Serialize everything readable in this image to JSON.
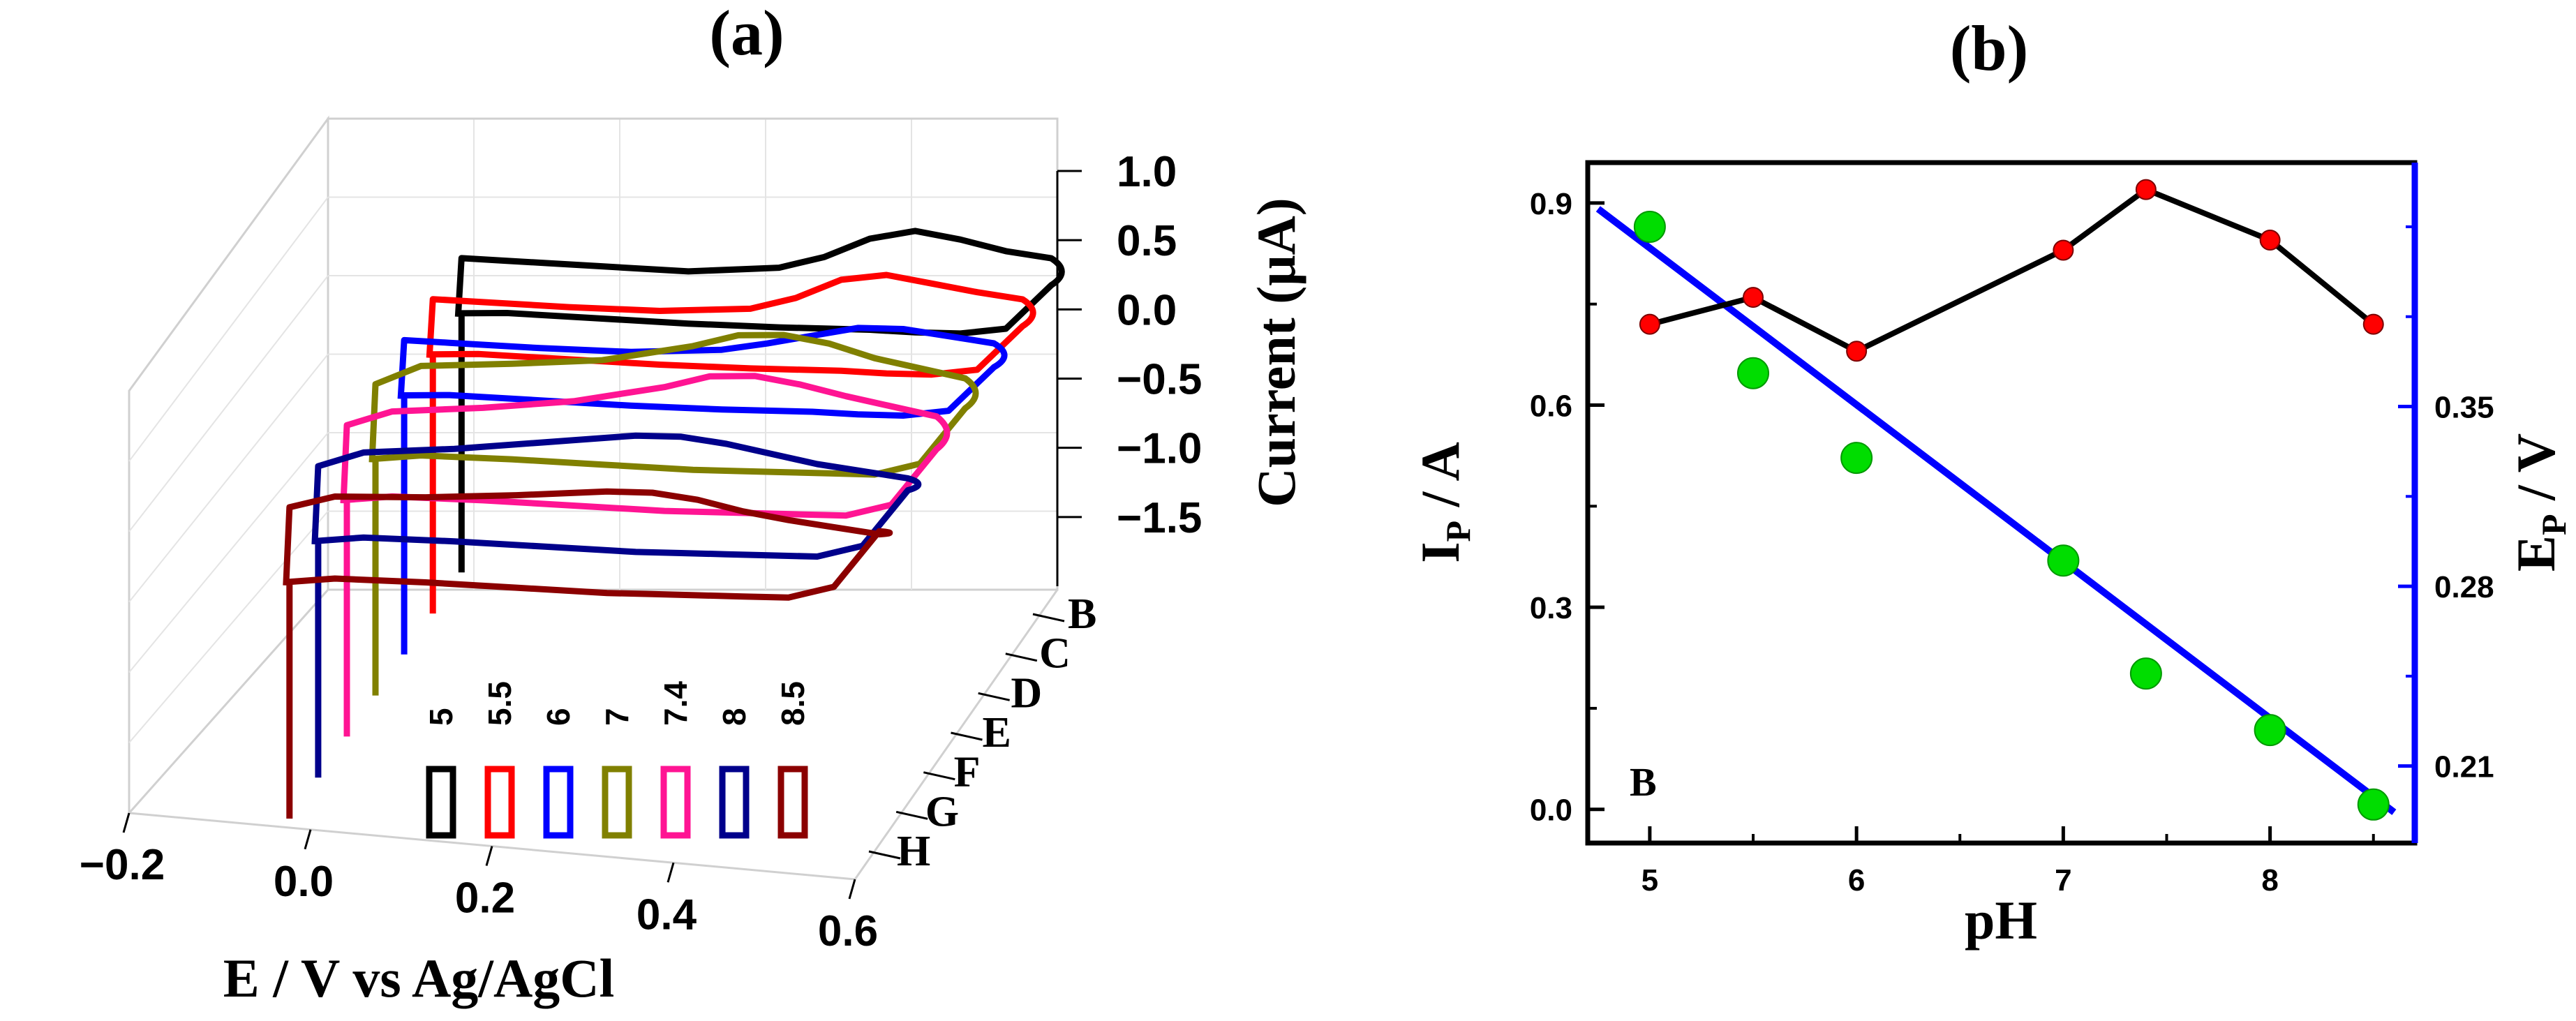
{
  "chart_data": [
    {
      "panel": "a",
      "title": "(a)",
      "type": "line",
      "subtype": "3d-waterfall-cyclic-voltammograms",
      "xlabel": "E / V vs Ag/AgCl",
      "ylabel": "Current (μA)",
      "x_ticks": [
        "−0.2",
        "0.0",
        "0.2",
        "0.4",
        "0.6"
      ],
      "y_ticks": [
        "1.0",
        "0.5",
        "0.0",
        "−0.5",
        "−1.0",
        "−1.5"
      ],
      "z_ticks": [
        "B",
        "C",
        "D",
        "E",
        "F",
        "G",
        "H"
      ],
      "xlim": [
        -0.2,
        0.6
      ],
      "ylim": [
        -2.0,
        1.0
      ],
      "legend_title_values": [
        "5",
        "5.5",
        "6",
        "7",
        "7.4",
        "8",
        "8.5"
      ],
      "series": [
        {
          "name": "5",
          "z": "B",
          "color": "#000000",
          "x": [
            -0.05,
            0.0,
            0.1,
            0.2,
            0.3,
            0.35,
            0.4,
            0.45,
            0.5,
            0.55,
            0.6
          ],
          "forward": [
            -0.08,
            -0.07,
            -0.05,
            -0.03,
            0.05,
            0.15,
            0.3,
            0.38,
            0.35,
            0.3,
            0.28
          ],
          "reverse": [
            -0.45,
            -0.42,
            -0.4,
            -0.38,
            -0.35,
            -0.33,
            -0.31,
            -0.3,
            -0.28,
            -0.22,
            0.1
          ]
        },
        {
          "name": "5.5",
          "z": "C",
          "color": "#ff0000",
          "x": [
            -0.05,
            0.0,
            0.1,
            0.2,
            0.3,
            0.35,
            0.4,
            0.45,
            0.5,
            0.55,
            0.6
          ],
          "forward": [
            -0.08,
            -0.07,
            -0.05,
            -0.02,
            0.05,
            0.15,
            0.3,
            0.36,
            0.33,
            0.3,
            0.28
          ],
          "reverse": [
            -0.45,
            -0.42,
            -0.4,
            -0.38,
            -0.35,
            -0.33,
            -0.31,
            -0.3,
            -0.28,
            -0.22,
            0.1
          ]
        },
        {
          "name": "6",
          "z": "D",
          "color": "#0000ff",
          "x": [
            -0.05,
            0.0,
            0.1,
            0.2,
            0.3,
            0.35,
            0.4,
            0.45,
            0.5,
            0.55,
            0.6
          ],
          "forward": [
            -0.08,
            -0.07,
            -0.05,
            -0.02,
            0.05,
            0.12,
            0.2,
            0.28,
            0.3,
            0.28,
            0.26
          ],
          "reverse": [
            -0.45,
            -0.42,
            -0.4,
            -0.38,
            -0.35,
            -0.33,
            -0.31,
            -0.3,
            -0.28,
            -0.22,
            0.1
          ]
        },
        {
          "name": "7",
          "z": "E",
          "color": "#808000",
          "x": [
            -0.05,
            0.0,
            0.1,
            0.2,
            0.3,
            0.35,
            0.4,
            0.45,
            0.5,
            0.55,
            0.6
          ],
          "forward": [
            -0.1,
            0.05,
            0.12,
            0.2,
            0.35,
            0.45,
            0.48,
            0.45,
            0.38,
            0.34,
            0.3
          ],
          "reverse": [
            -0.6,
            -0.55,
            -0.52,
            -0.5,
            -0.48,
            -0.46,
            -0.44,
            -0.42,
            -0.4,
            -0.3,
            0.1
          ]
        },
        {
          "name": "7.4",
          "z": "F",
          "color": "#ff1493",
          "x": [
            -0.05,
            0.0,
            0.1,
            0.2,
            0.3,
            0.35,
            0.4,
            0.45,
            0.5,
            0.55,
            0.6
          ],
          "forward": [
            -0.1,
            0.02,
            0.1,
            0.2,
            0.35,
            0.45,
            0.48,
            0.45,
            0.4,
            0.36,
            0.32
          ],
          "reverse": [
            -0.6,
            -0.55,
            -0.52,
            -0.5,
            -0.48,
            -0.46,
            -0.44,
            -0.42,
            -0.4,
            -0.3,
            0.1
          ]
        },
        {
          "name": "8",
          "z": "G",
          "color": "#00008b",
          "x": [
            -0.05,
            0.0,
            0.1,
            0.2,
            0.3,
            0.35,
            0.4,
            0.45,
            0.5,
            0.55,
            0.6
          ],
          "forward": [
            -0.1,
            0.02,
            0.1,
            0.2,
            0.3,
            0.32,
            0.3,
            0.26,
            0.22,
            0.2,
            0.18
          ],
          "reverse": [
            -0.6,
            -0.55,
            -0.52,
            -0.5,
            -0.48,
            -0.46,
            -0.44,
            -0.42,
            -0.4,
            -0.3,
            0.1
          ]
        },
        {
          "name": "8.5",
          "z": "H",
          "color": "#8b0000",
          "x": [
            -0.05,
            0.0,
            0.1,
            0.2,
            0.3,
            0.35,
            0.4,
            0.45,
            0.5,
            0.55,
            0.6
          ],
          "forward": [
            -0.1,
            0.0,
            0.05,
            0.12,
            0.2,
            0.22,
            0.2,
            0.15,
            0.12,
            0.1,
            0.08
          ],
          "reverse": [
            -0.6,
            -0.55,
            -0.52,
            -0.5,
            -0.48,
            -0.46,
            -0.44,
            -0.42,
            -0.4,
            -0.3,
            0.1
          ]
        }
      ]
    },
    {
      "panel": "b",
      "title": "(b)",
      "type": "scatter",
      "xlabel": "pH",
      "ylabel_left": "I",
      "ylabel_left_sub": "P",
      "ylabel_left_unit": " / A",
      "ylabel_right": "E",
      "ylabel_right_sub": "P",
      "ylabel_right_unit": " / V",
      "annotation": "B",
      "xlim": [
        4.7,
        8.7
      ],
      "ylim_left": [
        -0.05,
        0.96
      ],
      "ylim_right": [
        0.18,
        0.445
      ],
      "x_ticks": [
        "5",
        "6",
        "7",
        "8"
      ],
      "y_ticks_left": [
        "0.0",
        "0.3",
        "0.6",
        "0.9"
      ],
      "y_ticks_right": [
        "0.21",
        "0.28",
        "0.35"
      ],
      "series": [
        {
          "name": "Ip",
          "axis": "left",
          "color": "#ff0000",
          "line_color": "#000000",
          "x": [
            5,
            5.5,
            6,
            7,
            7.4,
            8,
            8.5
          ],
          "y": [
            0.72,
            0.76,
            0.68,
            0.83,
            0.92,
            0.845,
            0.72
          ]
        },
        {
          "name": "Ep",
          "axis": "right",
          "color": "#00dd00",
          "x": [
            5,
            5.5,
            6,
            7,
            7.4,
            8,
            8.5
          ],
          "y": [
            0.42,
            0.363,
            0.33,
            0.29,
            0.246,
            0.224,
            0.195
          ]
        },
        {
          "name": "Ep fit",
          "axis": "right",
          "color": "#0000ff",
          "x": [
            4.75,
            8.6
          ],
          "y": [
            0.427,
            0.192
          ]
        }
      ]
    }
  ]
}
